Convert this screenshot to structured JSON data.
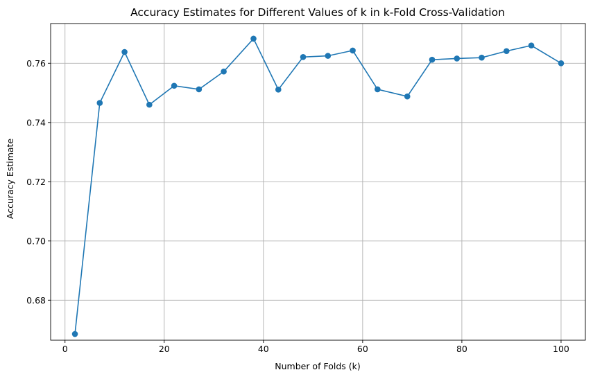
{
  "chart_data": {
    "type": "line",
    "title": "Accuracy Estimates for Different Values of k in k-Fold Cross-Validation",
    "xlabel": "Number of Folds (k)",
    "ylabel": "Accuracy Estimate",
    "xlim": [
      -2.9,
      104.9
    ],
    "ylim": [
      0.6665,
      0.7734
    ],
    "x_ticks": [
      0,
      20,
      40,
      60,
      80,
      100
    ],
    "y_ticks": [
      0.68,
      0.7,
      0.72,
      0.74,
      0.76
    ],
    "grid": true,
    "color": "#1f77b4",
    "marker": "circle",
    "series": [
      {
        "x": [
          2,
          7,
          12,
          17,
          22,
          27,
          32,
          38,
          43,
          48,
          53,
          58,
          63,
          69,
          74,
          79,
          84,
          89,
          94,
          100
        ],
        "values": [
          0.6686,
          0.7466,
          0.7638,
          0.746,
          0.7524,
          0.7512,
          0.7572,
          0.7683,
          0.7511,
          0.7621,
          0.7625,
          0.7643,
          0.7512,
          0.7488,
          0.7612,
          0.7616,
          0.7619,
          0.7641,
          0.766,
          0.76
        ]
      }
    ]
  }
}
